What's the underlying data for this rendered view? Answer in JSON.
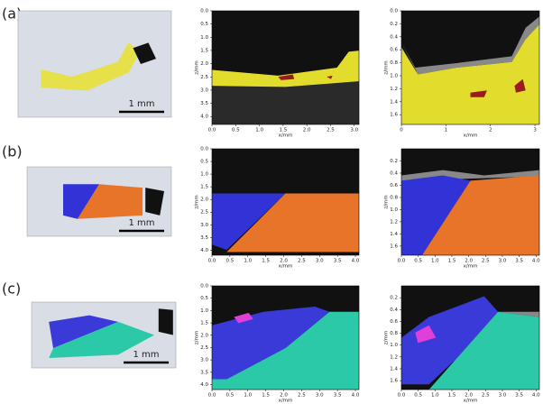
{
  "panels": [
    {
      "label": "(a)",
      "scale_bar": "1 mm",
      "plots": [
        {
          "xlabel": "x/mm",
          "ylabel": "z/mm",
          "xlim": [
            0,
            3.1
          ],
          "ylim": [
            0,
            4.3
          ],
          "xticks": [
            {
              "value": 0,
              "label": "0.0"
            },
            0.5,
            {
              "value": 1,
              "label": "1.0"
            },
            1.5,
            {
              "value": 2,
              "label": "2.0"
            },
            2.5,
            {
              "value": 3,
              "label": "3.0"
            }
          ],
          "yticks": [
            {
              "value": 0,
              "label": "0.0"
            },
            0.5,
            {
              "value": 1,
              "label": "1.0"
            },
            1.5,
            {
              "value": 2,
              "label": "2.0"
            },
            2.5,
            {
              "value": 3,
              "label": "3.0"
            },
            3.5,
            {
              "value": 4,
              "label": "4.0"
            }
          ]
        },
        {
          "xlabel": "x/mm",
          "ylabel": "z/mm",
          "xlim": [
            0,
            3.1
          ],
          "ylim": [
            0,
            1.75
          ],
          "xticks": [
            0,
            1,
            2,
            3
          ],
          "yticks": [
            {
              "value": 0,
              "label": "0.0"
            },
            0.2,
            0.4,
            0.6,
            0.8,
            {
              "value": 1,
              "label": "1.0"
            },
            1.2,
            1.4,
            1.6
          ]
        }
      ]
    },
    {
      "label": "(b)",
      "scale_bar": "1 mm",
      "plots": [
        {
          "xlabel": "x/mm",
          "ylabel": "z/mm",
          "xlim": [
            0,
            4.1
          ],
          "ylim": [
            0,
            4.2
          ],
          "xticks": [
            {
              "value": 0,
              "label": "0.0"
            },
            0.5,
            {
              "value": 1,
              "label": "1.0"
            },
            1.5,
            {
              "value": 2,
              "label": "2.0"
            },
            2.5,
            {
              "value": 3,
              "label": "3.0"
            },
            3.5,
            {
              "value": 4,
              "label": "4.0"
            }
          ],
          "yticks": [
            {
              "value": 0,
              "label": "0.0"
            },
            0.5,
            {
              "value": 1,
              "label": "1.0"
            },
            1.5,
            {
              "value": 2,
              "label": "2.0"
            },
            2.5,
            {
              "value": 3,
              "label": "3.0"
            },
            3.5,
            {
              "value": 4,
              "label": "4.0"
            }
          ]
        },
        {
          "xlabel": "x/mm",
          "ylabel": "z/mm",
          "xlim": [
            0,
            4.1
          ],
          "ylim": [
            0,
            1.75
          ],
          "xticks": [
            {
              "value": 0,
              "label": "0.0"
            },
            0.5,
            {
              "value": 1,
              "label": "1.0"
            },
            1.5,
            {
              "value": 2,
              "label": "2.0"
            },
            2.5,
            {
              "value": 3,
              "label": "3.0"
            },
            3.5,
            {
              "value": 4,
              "label": "4.0"
            }
          ],
          "yticks": [
            0.2,
            0.4,
            0.6,
            0.8,
            {
              "value": 1,
              "label": "1.0"
            },
            1.2,
            1.4,
            1.6
          ]
        }
      ]
    },
    {
      "label": "(c)",
      "scale_bar": "1 mm",
      "plots": [
        {
          "xlabel": "x/mm",
          "ylabel": "z/mm",
          "xlim": [
            0,
            4.1
          ],
          "ylim": [
            0,
            4.2
          ],
          "xticks": [
            {
              "value": 0,
              "label": "0.0"
            },
            0.5,
            {
              "value": 1,
              "label": "1.0"
            },
            1.5,
            {
              "value": 2,
              "label": "2.0"
            },
            2.5,
            {
              "value": 3,
              "label": "3.0"
            },
            3.5,
            {
              "value": 4,
              "label": "4.0"
            }
          ],
          "yticks": [
            {
              "value": 0,
              "label": "0.0"
            },
            0.5,
            {
              "value": 1,
              "label": "1.0"
            },
            1.5,
            {
              "value": 2,
              "label": "2.0"
            },
            2.5,
            {
              "value": 3,
              "label": "3.0"
            },
            3.5,
            {
              "value": 4,
              "label": "4.0"
            }
          ]
        },
        {
          "xlabel": "x/mm",
          "ylabel": "z/mm",
          "xlim": [
            0,
            4.1
          ],
          "ylim": [
            0,
            1.75
          ],
          "xticks": [
            {
              "value": 0,
              "label": "0.0"
            },
            0.5,
            {
              "value": 1,
              "label": "1.0"
            },
            1.5,
            {
              "value": 2,
              "label": "2.0"
            },
            2.5,
            {
              "value": 3,
              "label": "3.0"
            },
            3.5,
            {
              "value": 4,
              "label": "4.0"
            }
          ],
          "yticks": [
            0.2,
            0.4,
            0.6,
            0.8,
            {
              "value": 1,
              "label": "1.0"
            },
            1.2,
            1.4,
            1.6
          ]
        }
      ]
    }
  ]
}
